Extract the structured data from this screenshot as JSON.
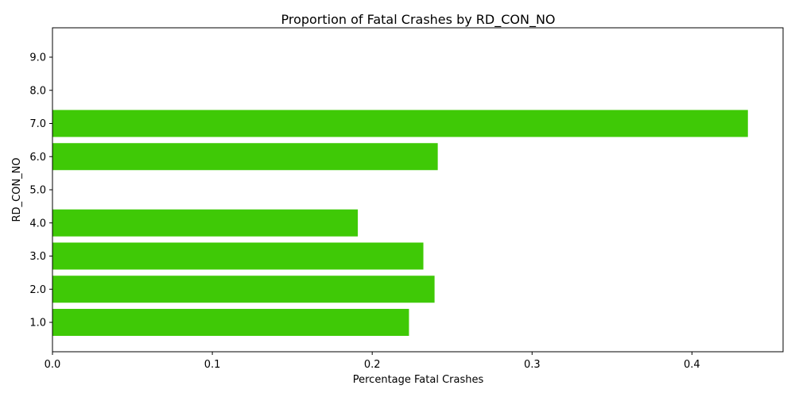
{
  "chart_data": {
    "type": "bar",
    "orientation": "horizontal",
    "title": "Proportion of Fatal Crashes by RD_CON_NO",
    "xlabel": "Percentage Fatal Crashes",
    "ylabel": "RD_CON_NO",
    "categories": [
      "1.0",
      "2.0",
      "3.0",
      "4.0",
      "5.0",
      "6.0",
      "7.0",
      "8.0",
      "9.0"
    ],
    "values": [
      0.223,
      0.239,
      0.232,
      0.191,
      null,
      0.241,
      0.435,
      null,
      null
    ],
    "xlim": [
      0,
      0.457
    ],
    "xticks": [
      0.0,
      0.1,
      0.2,
      0.3,
      0.4
    ],
    "xtick_labels": [
      "0.0",
      "0.1",
      "0.2",
      "0.3",
      "0.4"
    ],
    "bar_color": "#3fc906",
    "grid": false,
    "legend": "none"
  }
}
